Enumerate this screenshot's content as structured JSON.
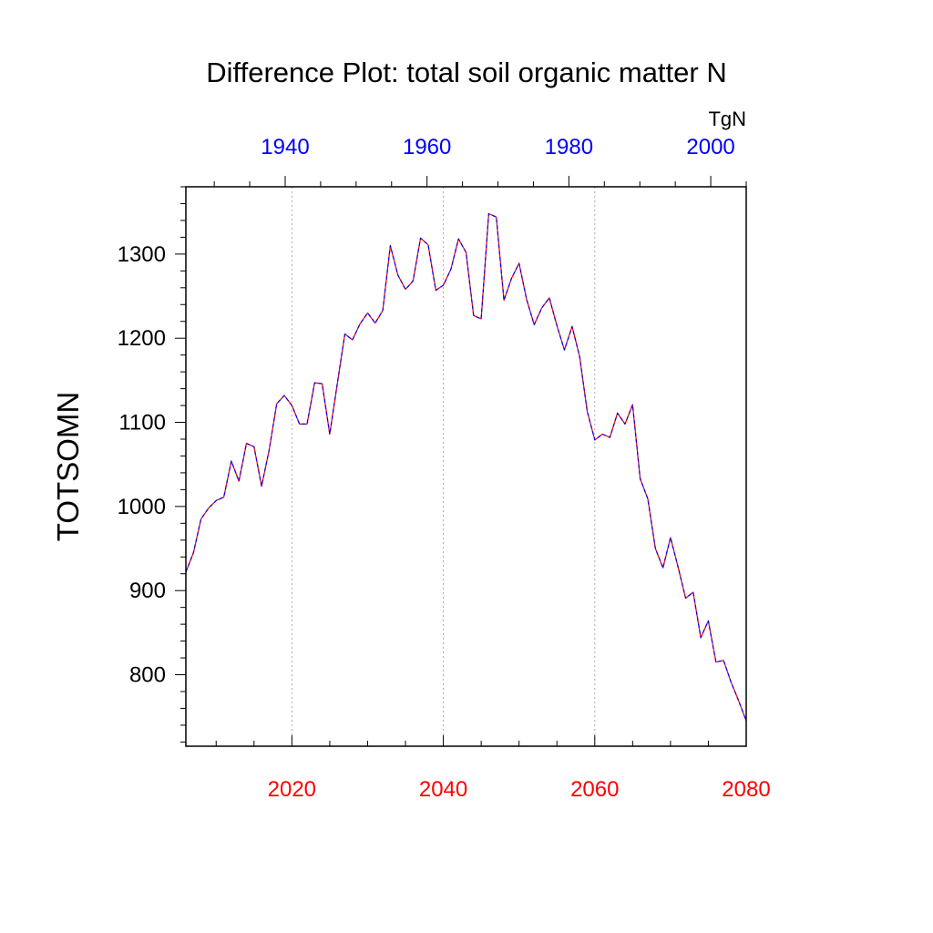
{
  "chart_data": {
    "type": "line",
    "title": "Difference Plot: total soil organic matter N",
    "ylabel": "TOTSOMN",
    "units": "TgN",
    "bottom_axis": {
      "range": [
        2006,
        2080
      ],
      "ticks": [
        2020,
        2040,
        2060,
        2080
      ],
      "tick_labels": [
        "2020",
        "2040",
        "2060",
        "2080"
      ],
      "color": "#ff0000"
    },
    "top_axis": {
      "range": [
        1926,
        2005
      ],
      "ticks": [
        1940,
        1960,
        1980,
        2000
      ],
      "tick_labels": [
        "1940",
        "1960",
        "1980",
        "2000"
      ],
      "color": "#0000ff"
    },
    "y_axis": {
      "range": [
        715,
        1380
      ],
      "ticks": [
        800,
        900,
        1000,
        1100,
        1200,
        1300
      ],
      "tick_labels": [
        "800",
        "900",
        "1000",
        "1100",
        "1200",
        "1300"
      ]
    },
    "grid": "vertical-dotted",
    "series": [
      {
        "color": "#ff0000",
        "style": "solid",
        "x": [
          2006,
          2007,
          2008,
          2009,
          2010,
          2011,
          2012,
          2013,
          2014,
          2015,
          2016,
          2017,
          2018,
          2019,
          2020,
          2021,
          2022,
          2023,
          2024,
          2025,
          2026,
          2027,
          2028,
          2029,
          2030,
          2031,
          2032,
          2033,
          2034,
          2035,
          2036,
          2037,
          2038,
          2039,
          2040,
          2041,
          2042,
          2043,
          2044,
          2045,
          2046,
          2047,
          2048,
          2049,
          2050,
          2051,
          2052,
          2053,
          2054,
          2055,
          2056,
          2057,
          2058,
          2059,
          2060,
          2061,
          2062,
          2063,
          2064,
          2065,
          2066,
          2067,
          2068,
          2069,
          2070,
          2071,
          2072,
          2073,
          2074,
          2075,
          2076,
          2077,
          2078,
          2079,
          2080
        ],
        "y": [
          922,
          945,
          985,
          998,
          1007,
          1011,
          1054,
          1030,
          1075,
          1071,
          1024,
          1067,
          1122,
          1132,
          1120,
          1098,
          1098,
          1147,
          1146,
          1086,
          1146,
          1205,
          1198,
          1217,
          1230,
          1218,
          1233,
          1310,
          1275,
          1258,
          1268,
          1319,
          1311,
          1257,
          1263,
          1282,
          1318,
          1302,
          1227,
          1223,
          1348,
          1344,
          1245,
          1271,
          1289,
          1246,
          1216,
          1236,
          1248,
          1215,
          1186,
          1214,
          1178,
          1113,
          1079,
          1086,
          1082,
          1111,
          1098,
          1121,
          1033,
          1009,
          950,
          927,
          963,
          928,
          891,
          898,
          844,
          864,
          815,
          817,
          791,
          769,
          745
        ]
      },
      {
        "color": "#0000ff",
        "style": "dashed",
        "x": [
          2006,
          2007,
          2008,
          2009,
          2010,
          2011,
          2012,
          2013,
          2014,
          2015,
          2016,
          2017,
          2018,
          2019,
          2020,
          2021,
          2022,
          2023,
          2024,
          2025,
          2026,
          2027,
          2028,
          2029,
          2030,
          2031,
          2032,
          2033,
          2034,
          2035,
          2036,
          2037,
          2038,
          2039,
          2040,
          2041,
          2042,
          2043,
          2044,
          2045,
          2046,
          2047,
          2048,
          2049,
          2050,
          2051,
          2052,
          2053,
          2054,
          2055,
          2056,
          2057,
          2058,
          2059,
          2060,
          2061,
          2062,
          2063,
          2064,
          2065,
          2066,
          2067,
          2068,
          2069,
          2070,
          2071,
          2072,
          2073,
          2074,
          2075,
          2076,
          2077,
          2078,
          2079,
          2080
        ],
        "y": [
          922,
          945,
          985,
          998,
          1007,
          1011,
          1054,
          1030,
          1075,
          1071,
          1024,
          1067,
          1122,
          1132,
          1120,
          1098,
          1098,
          1147,
          1146,
          1086,
          1146,
          1205,
          1198,
          1217,
          1230,
          1218,
          1233,
          1310,
          1275,
          1258,
          1268,
          1319,
          1311,
          1257,
          1263,
          1282,
          1318,
          1302,
          1227,
          1223,
          1348,
          1344,
          1245,
          1271,
          1289,
          1246,
          1216,
          1236,
          1248,
          1215,
          1186,
          1214,
          1178,
          1113,
          1079,
          1086,
          1082,
          1111,
          1098,
          1121,
          1033,
          1009,
          950,
          927,
          963,
          928,
          891,
          898,
          844,
          864,
          815,
          817,
          791,
          769,
          745
        ]
      }
    ]
  }
}
